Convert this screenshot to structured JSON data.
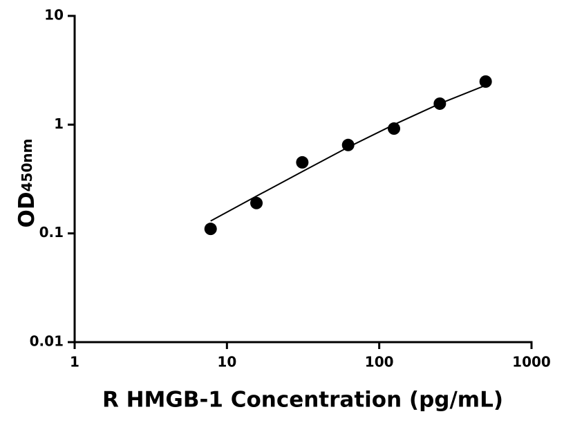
{
  "chart_data": {
    "type": "scatter",
    "xlabel": "R HMGB-1 Concentration (pg/mL)",
    "ylabel": {
      "text": "OD",
      "subscript": "450nm"
    },
    "xlog": true,
    "ylog": true,
    "xlim": [
      1,
      1000
    ],
    "ylim": [
      0.01,
      10
    ],
    "xticks": [
      1,
      10,
      100,
      1000
    ],
    "yticks": [
      0.01,
      0.1,
      1,
      10
    ],
    "series": [
      {
        "type": "scatter",
        "color": "#000000",
        "x": [
          7.8125,
          15.625,
          31.25,
          62.5,
          125,
          250,
          500
        ],
        "values": [
          0.11,
          0.19,
          0.45,
          0.65,
          0.92,
          1.56,
          2.49
        ]
      },
      {
        "type": "line",
        "color": "#000000",
        "x": [
          7.8125,
          15.625,
          31.25,
          62.5,
          125,
          250,
          500
        ],
        "values": [
          0.13,
          0.22,
          0.37,
          0.62,
          1.0,
          1.56,
          2.3
        ]
      }
    ]
  }
}
